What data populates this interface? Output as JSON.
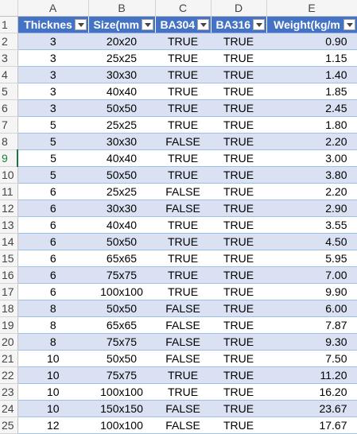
{
  "columns": [
    "A",
    "B",
    "C",
    "D",
    "E"
  ],
  "headers": [
    "Thicknes",
    "Size(mm",
    "BA304",
    "BA316",
    "Weight(kg/m"
  ],
  "rows": [
    {
      "num": "1"
    },
    {
      "num": "2",
      "t": "3",
      "size": "20x20",
      "ba304": "TRUE",
      "ba316": "TRUE",
      "w": "0.90"
    },
    {
      "num": "3",
      "t": "3",
      "size": "25x25",
      "ba304": "TRUE",
      "ba316": "TRUE",
      "w": "1.15"
    },
    {
      "num": "4",
      "t": "3",
      "size": "30x30",
      "ba304": "TRUE",
      "ba316": "TRUE",
      "w": "1.40"
    },
    {
      "num": "5",
      "t": "3",
      "size": "40x40",
      "ba304": "TRUE",
      "ba316": "TRUE",
      "w": "1.85"
    },
    {
      "num": "6",
      "t": "3",
      "size": "50x50",
      "ba304": "TRUE",
      "ba316": "TRUE",
      "w": "2.45"
    },
    {
      "num": "7",
      "t": "5",
      "size": "25x25",
      "ba304": "TRUE",
      "ba316": "TRUE",
      "w": "1.80"
    },
    {
      "num": "8",
      "t": "5",
      "size": "30x30",
      "ba304": "FALSE",
      "ba316": "TRUE",
      "w": "2.20"
    },
    {
      "num": "9",
      "t": "5",
      "size": "40x40",
      "ba304": "TRUE",
      "ba316": "TRUE",
      "w": "3.00"
    },
    {
      "num": "10",
      "t": "5",
      "size": "50x50",
      "ba304": "TRUE",
      "ba316": "TRUE",
      "w": "3.80"
    },
    {
      "num": "11",
      "t": "6",
      "size": "25x25",
      "ba304": "FALSE",
      "ba316": "TRUE",
      "w": "2.20"
    },
    {
      "num": "12",
      "t": "6",
      "size": "30x30",
      "ba304": "FALSE",
      "ba316": "TRUE",
      "w": "2.90"
    },
    {
      "num": "13",
      "t": "6",
      "size": "40x40",
      "ba304": "TRUE",
      "ba316": "TRUE",
      "w": "3.55"
    },
    {
      "num": "14",
      "t": "6",
      "size": "50x50",
      "ba304": "TRUE",
      "ba316": "TRUE",
      "w": "4.50"
    },
    {
      "num": "15",
      "t": "6",
      "size": "65x65",
      "ba304": "TRUE",
      "ba316": "TRUE",
      "w": "5.95"
    },
    {
      "num": "16",
      "t": "6",
      "size": "75x75",
      "ba304": "TRUE",
      "ba316": "TRUE",
      "w": "7.00"
    },
    {
      "num": "17",
      "t": "6",
      "size": "100x100",
      "ba304": "TRUE",
      "ba316": "TRUE",
      "w": "9.90"
    },
    {
      "num": "18",
      "t": "8",
      "size": "50x50",
      "ba304": "FALSE",
      "ba316": "TRUE",
      "w": "6.00"
    },
    {
      "num": "19",
      "t": "8",
      "size": "65x65",
      "ba304": "FALSE",
      "ba316": "TRUE",
      "w": "7.87"
    },
    {
      "num": "20",
      "t": "8",
      "size": "75x75",
      "ba304": "FALSE",
      "ba316": "TRUE",
      "w": "9.30"
    },
    {
      "num": "21",
      "t": "10",
      "size": "50x50",
      "ba304": "FALSE",
      "ba316": "TRUE",
      "w": "7.50"
    },
    {
      "num": "22",
      "t": "10",
      "size": "75x75",
      "ba304": "TRUE",
      "ba316": "TRUE",
      "w": "11.20"
    },
    {
      "num": "23",
      "t": "10",
      "size": "100x100",
      "ba304": "TRUE",
      "ba316": "TRUE",
      "w": "16.20"
    },
    {
      "num": "24",
      "t": "10",
      "size": "150x150",
      "ba304": "FALSE",
      "ba316": "TRUE",
      "w": "23.67"
    },
    {
      "num": "25",
      "t": "12",
      "size": "100x100",
      "ba304": "FALSE",
      "ba316": "TRUE",
      "w": "17.67"
    }
  ],
  "colors": {
    "header_fill": "#4472c4",
    "band_fill": "#d9e1f2",
    "active_row_number": "#1a7f3c"
  },
  "active_row": "9"
}
